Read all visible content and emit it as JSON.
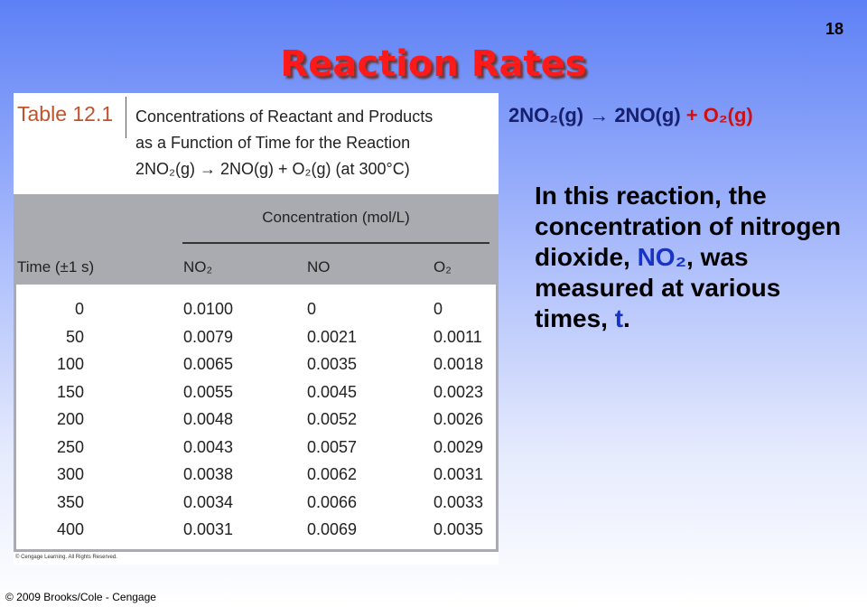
{
  "slide_number": "18",
  "title": "Reaction Rates",
  "table": {
    "label": "Table 12.1",
    "caption": [
      "Concentrations of Reactant and Products",
      "as a Function of Time for the Reaction",
      "2NO₂(g) → 2NO(g) + O₂(g) (at 300°C)"
    ],
    "group_header": "Concentration (mol/L)",
    "headers": [
      "Time (±1 s)",
      "NO₂",
      "NO",
      "O₂"
    ],
    "rows": [
      [
        "0",
        "0.0100",
        "0",
        "0"
      ],
      [
        "50",
        "0.0079",
        "0.0021",
        "0.0011"
      ],
      [
        "100",
        "0.0065",
        "0.0035",
        "0.0018"
      ],
      [
        "150",
        "0.0055",
        "0.0045",
        "0.0023"
      ],
      [
        "200",
        "0.0048",
        "0.0052",
        "0.0026"
      ],
      [
        "250",
        "0.0043",
        "0.0057",
        "0.0029"
      ],
      [
        "300",
        "0.0038",
        "0.0062",
        "0.0031"
      ],
      [
        "350",
        "0.0034",
        "0.0066",
        "0.0033"
      ],
      [
        "400",
        "0.0031",
        "0.0069",
        "0.0035"
      ]
    ],
    "rights": "© Cengage Learning. All Rights Reserved."
  },
  "equation": [
    "2NO₂(g) → 2NO(g)",
    "+ O₂(g)"
  ],
  "paragraph": [
    "In this reaction, the concentration of nitrogen dioxide, ",
    "NO₂",
    ", was measured at various times, ",
    "t",
    "."
  ],
  "footer": "© 2009 Brooks/Cole - Cengage"
}
